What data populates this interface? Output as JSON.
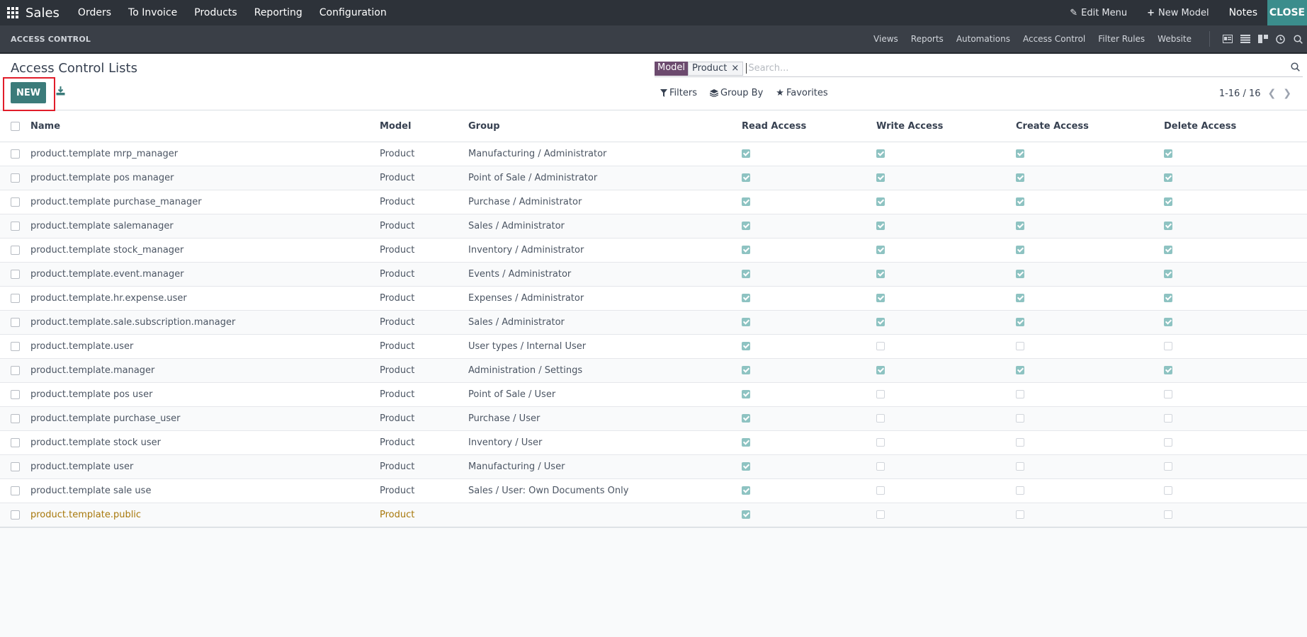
{
  "topbar": {
    "brand": "Sales",
    "nav": [
      "Orders",
      "To Invoice",
      "Products",
      "Reporting",
      "Configuration"
    ],
    "edit_menu": "Edit Menu",
    "new_model": "New Model",
    "notes": "Notes",
    "close": "CLOSE"
  },
  "subbar": {
    "title": "ACCESS CONTROL",
    "items": [
      "Views",
      "Reports",
      "Automations",
      "Access Control",
      "Filter Rules",
      "Website"
    ]
  },
  "control": {
    "title": "Access Control Lists",
    "new_label": "NEW",
    "facet_label": "Model",
    "facet_value": "Product",
    "facet_remove": "×",
    "search_placeholder": "Search...",
    "filters": "Filters",
    "group_by": "Group By",
    "favorites": "Favorites",
    "pager": "1-16 / 16"
  },
  "table": {
    "headers": [
      "Name",
      "Model",
      "Group",
      "Read Access",
      "Write Access",
      "Create Access",
      "Delete Access"
    ],
    "rows": [
      {
        "name": "product.template mrp_manager",
        "model": "Product",
        "group": "Manufacturing / Administrator",
        "read": true,
        "write": true,
        "create": true,
        "delete": true
      },
      {
        "name": "product.template pos manager",
        "model": "Product",
        "group": "Point of Sale / Administrator",
        "read": true,
        "write": true,
        "create": true,
        "delete": true
      },
      {
        "name": "product.template purchase_manager",
        "model": "Product",
        "group": "Purchase / Administrator",
        "read": true,
        "write": true,
        "create": true,
        "delete": true
      },
      {
        "name": "product.template salemanager",
        "model": "Product",
        "group": "Sales / Administrator",
        "read": true,
        "write": true,
        "create": true,
        "delete": true
      },
      {
        "name": "product.template stock_manager",
        "model": "Product",
        "group": "Inventory / Administrator",
        "read": true,
        "write": true,
        "create": true,
        "delete": true
      },
      {
        "name": "product.template.event.manager",
        "model": "Product",
        "group": "Events / Administrator",
        "read": true,
        "write": true,
        "create": true,
        "delete": true
      },
      {
        "name": "product.template.hr.expense.user",
        "model": "Product",
        "group": "Expenses / Administrator",
        "read": true,
        "write": true,
        "create": true,
        "delete": true
      },
      {
        "name": "product.template.sale.subscription.manager",
        "model": "Product",
        "group": "Sales / Administrator",
        "read": true,
        "write": true,
        "create": true,
        "delete": true
      },
      {
        "name": "product.template.user",
        "model": "Product",
        "group": "User types / Internal User",
        "read": true,
        "write": false,
        "create": false,
        "delete": false
      },
      {
        "name": "product.template.manager",
        "model": "Product",
        "group": "Administration / Settings",
        "read": true,
        "write": true,
        "create": true,
        "delete": true
      },
      {
        "name": "product.template pos user",
        "model": "Product",
        "group": "Point of Sale / User",
        "read": true,
        "write": false,
        "create": false,
        "delete": false
      },
      {
        "name": "product.template purchase_user",
        "model": "Product",
        "group": "Purchase / User",
        "read": true,
        "write": false,
        "create": false,
        "delete": false
      },
      {
        "name": "product.template stock user",
        "model": "Product",
        "group": "Inventory / User",
        "read": true,
        "write": false,
        "create": false,
        "delete": false
      },
      {
        "name": "product.template user",
        "model": "Product",
        "group": "Manufacturing / User",
        "read": true,
        "write": false,
        "create": false,
        "delete": false
      },
      {
        "name": "product.template sale use",
        "model": "Product",
        "group": "Sales / User: Own Documents Only",
        "read": true,
        "write": false,
        "create": false,
        "delete": false
      },
      {
        "name": "product.template.public",
        "model": "Product",
        "group": "",
        "read": true,
        "write": false,
        "create": false,
        "delete": false,
        "muted": true
      }
    ]
  }
}
